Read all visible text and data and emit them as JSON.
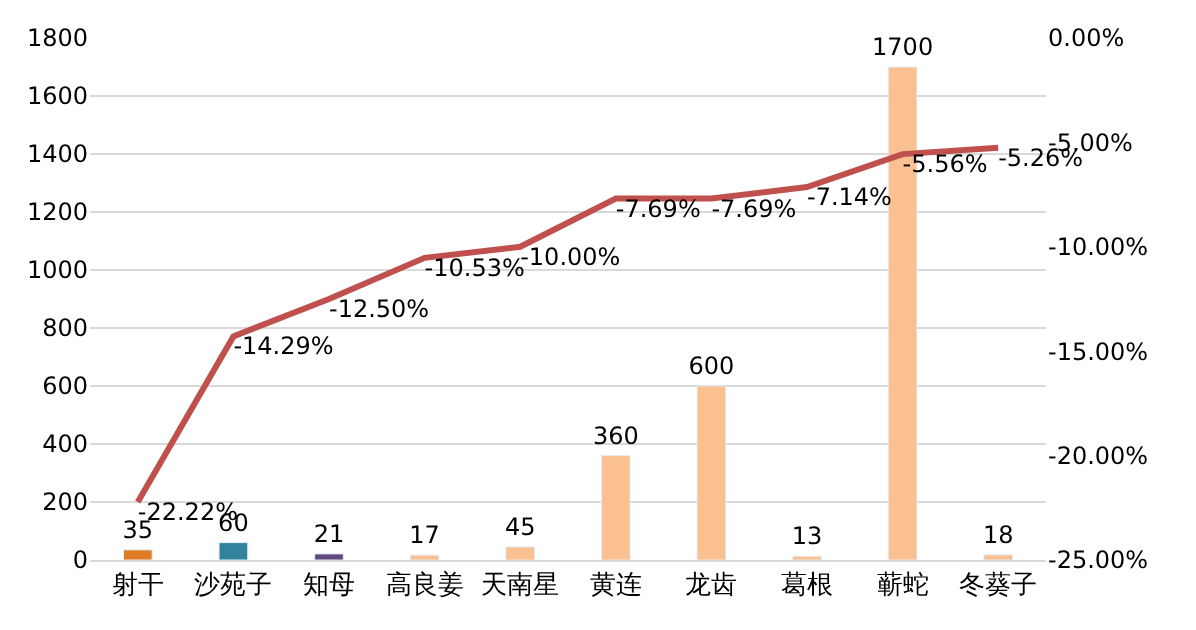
{
  "chart_data": {
    "type": "bar",
    "categories": [
      "射干",
      "沙苑子",
      "知母",
      "高良姜",
      "天南星",
      "黄连",
      "龙齿",
      "葛根",
      "蕲蛇",
      "冬葵子"
    ],
    "series": [
      {
        "colors": [
          "#e07b26",
          "#31849b",
          "#604a7b",
          "#fac090",
          "#fac090",
          "#fac090",
          "#fac090",
          "#fac090",
          "#fac090",
          "#fac090"
        ],
        "values": [
          35,
          60,
          21,
          17,
          45,
          360,
          600,
          13,
          1700,
          18
        ],
        "data_labels": true
      },
      {
        "type": "line",
        "axis": "y2",
        "color": "#c0504d",
        "values": [
          -22.22,
          -14.29,
          -12.5,
          -10.53,
          -10.0,
          -7.69,
          -7.69,
          -7.14,
          -5.56,
          -5.26
        ],
        "value_labels": [
          "-22.22%",
          "-14.29%",
          "-12.50%",
          "-10.53%",
          "-10.00%",
          "-7.69%",
          "-7.69%",
          "-7.14%",
          "-5.56%",
          "-5.26%"
        ],
        "marker": "none",
        "line_style": "solid"
      }
    ],
    "ylim": [
      0,
      1800
    ],
    "yticks": [
      0,
      200,
      400,
      600,
      800,
      1000,
      1200,
      1400,
      1600,
      1800
    ],
    "y2lim": [
      -25,
      0
    ],
    "y2ticks": [
      {
        "value": -25,
        "label": "-25.00%"
      },
      {
        "value": -20,
        "label": "-20.00%"
      },
      {
        "value": -15,
        "label": "-15.00%"
      },
      {
        "value": -10,
        "label": "-10.00%"
      },
      {
        "value": -5,
        "label": "-5.00%"
      },
      {
        "value": 0,
        "label": "0.00%"
      }
    ],
    "grid": "y"
  }
}
